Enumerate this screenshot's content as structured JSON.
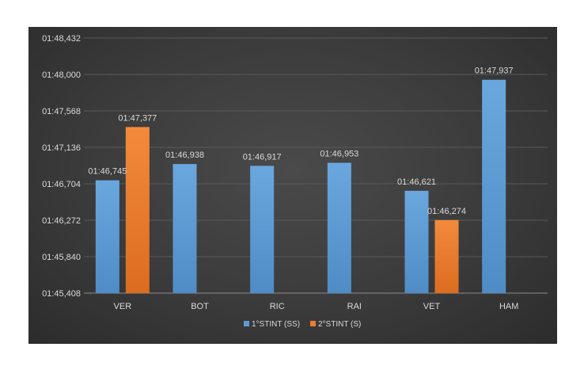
{
  "chart_data": {
    "type": "bar",
    "categories": [
      "VER",
      "BOT",
      "RIC",
      "RAI",
      "VET",
      "HAM"
    ],
    "y_unit": "lap time (minutes:seconds,thousandths)",
    "series": [
      {
        "name": "1°STINT (SS)",
        "color": "#5b9bd5",
        "values": [
          106.745,
          106.938,
          106.917,
          106.953,
          106.621,
          107.937
        ],
        "labels": [
          "01:46,745",
          "01:46,938",
          "01:46,917",
          "01:46,953",
          "01:46,621",
          "01:47,937"
        ]
      },
      {
        "name": "2°STINT (S)",
        "color": "#ed7d31",
        "values": [
          107.377,
          null,
          null,
          null,
          106.274,
          null
        ],
        "labels": [
          "01:47,377",
          null,
          null,
          null,
          "01:46,274",
          null
        ]
      }
    ],
    "ylim": [
      105.408,
      108.432
    ],
    "yticks": [
      105.408,
      105.84,
      106.272,
      106.704,
      107.136,
      107.568,
      108.0,
      108.432
    ],
    "ytick_labels": [
      "01:45,408",
      "01:45,840",
      "01:46,272",
      "01:46,704",
      "01:47,136",
      "01:47,568",
      "01:48,000",
      "01:48,432"
    ],
    "grid": true,
    "legend": "bottom",
    "background": "#3b3b3b",
    "gridline_color": "#595959",
    "axis_text_color": "#d9d9d9"
  }
}
